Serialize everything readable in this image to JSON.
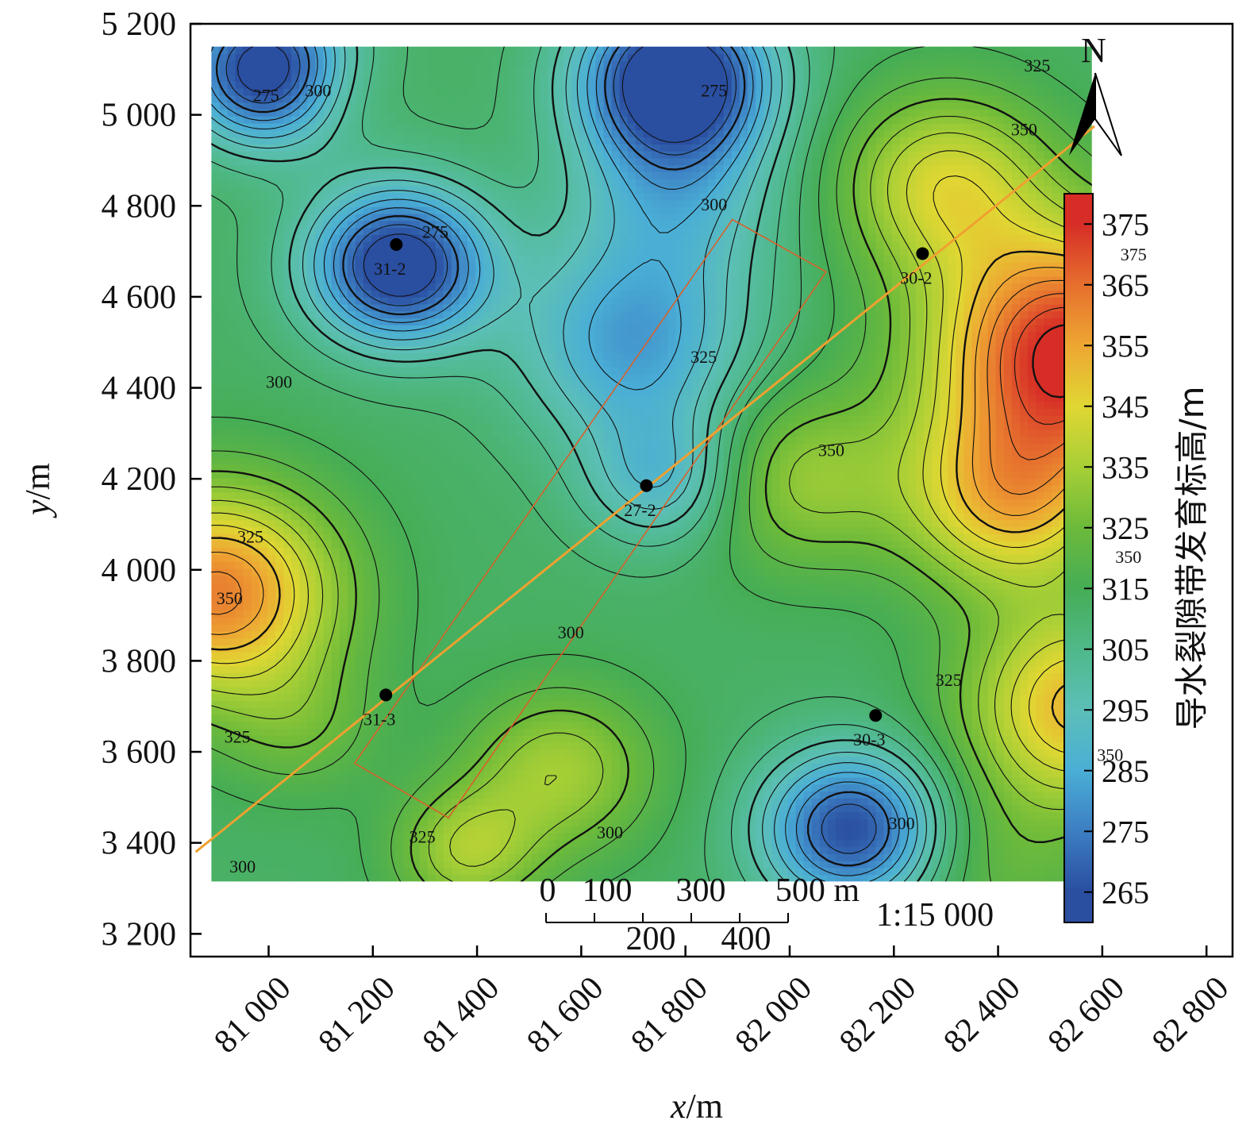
{
  "chart_data": {
    "type": "contour",
    "xlabel_italic": "x",
    "xlabel_unit": "/m",
    "ylabel_italic": "y",
    "ylabel_unit": "/m",
    "xlim": [
      80850,
      82850
    ],
    "ylim": [
      3150,
      5200
    ],
    "x_ticks": [
      81000,
      81200,
      81400,
      81600,
      81800,
      82000,
      82200,
      82400,
      82600,
      82800
    ],
    "x_tick_labels": [
      "81 000",
      "81 200",
      "81 400",
      "81 600",
      "81 800",
      "82 000",
      "82 200",
      "82 400",
      "82 600",
      "82 800"
    ],
    "y_ticks": [
      3200,
      3400,
      3600,
      3800,
      4000,
      4200,
      4400,
      4600,
      4800,
      5000,
      5200
    ],
    "y_tick_labels": [
      "3 200",
      "3 400",
      "3 600",
      "3 800",
      "4 000",
      "4 200",
      "4 400",
      "4 600",
      "4 800",
      "5 000",
      "5 200"
    ],
    "field_extent": {
      "x": [
        80890,
        82580
      ],
      "y": [
        3315,
        5150
      ]
    },
    "colorbar": {
      "title": "导水裂隙带发育标高/m",
      "range": [
        260,
        380
      ],
      "ticks": [
        265,
        275,
        285,
        295,
        305,
        315,
        325,
        335,
        345,
        355,
        365,
        375
      ],
      "tick_labels": [
        "265",
        "275",
        "285",
        "295",
        "305",
        "315",
        "325",
        "335",
        "345",
        "355",
        "365",
        "375"
      ],
      "colors": [
        "#2a4ea0",
        "#3c7ec2",
        "#4aaed6",
        "#5cbfb8",
        "#4fb98a",
        "#46ad55",
        "#6cba3a",
        "#a7cf36",
        "#e0d733",
        "#eea633",
        "#e66f2e",
        "#d62d26"
      ]
    },
    "contour_levels_major": [
      275,
      300,
      325,
      350,
      375
    ],
    "contour_labels": [
      {
        "text": "275",
        "x": 80995,
        "y": 5030
      },
      {
        "text": "300",
        "x": 81095,
        "y": 5040
      },
      {
        "text": "275",
        "x": 81855,
        "y": 5040
      },
      {
        "text": "325",
        "x": 82475,
        "y": 5095
      },
      {
        "text": "350",
        "x": 82450,
        "y": 4955
      },
      {
        "text": "275",
        "x": 81320,
        "y": 4730
      },
      {
        "text": "300",
        "x": 81855,
        "y": 4790
      },
      {
        "text": "375",
        "x": 82660,
        "y": 4680
      },
      {
        "text": "300",
        "x": 81020,
        "y": 4400
      },
      {
        "text": "325",
        "x": 81835,
        "y": 4455
      },
      {
        "text": "350",
        "x": 82080,
        "y": 4250
      },
      {
        "text": "325",
        "x": 80965,
        "y": 4060
      },
      {
        "text": "350",
        "x": 80925,
        "y": 3925
      },
      {
        "text": "350",
        "x": 82650,
        "y": 4015
      },
      {
        "text": "300",
        "x": 81580,
        "y": 3850
      },
      {
        "text": "325",
        "x": 82305,
        "y": 3745
      },
      {
        "text": "350",
        "x": 82615,
        "y": 3580
      },
      {
        "text": "325",
        "x": 80940,
        "y": 3620
      },
      {
        "text": "300",
        "x": 81655,
        "y": 3410
      },
      {
        "text": "300",
        "x": 82215,
        "y": 3430
      },
      {
        "text": "325",
        "x": 81295,
        "y": 3400
      },
      {
        "text": "300",
        "x": 80950,
        "y": 3335
      }
    ],
    "wells": [
      {
        "name": "31-2",
        "x": 81245,
        "y": 4715
      },
      {
        "name": "30-2",
        "x": 82255,
        "y": 4695
      },
      {
        "name": "27-2",
        "x": 81725,
        "y": 4185
      },
      {
        "name": "31-3",
        "x": 81225,
        "y": 3725
      },
      {
        "name": "30-3",
        "x": 82165,
        "y": 3680
      }
    ],
    "working_face_outline": [
      [
        81165,
        3575
      ],
      [
        81345,
        3455
      ],
      [
        82070,
        4655
      ],
      [
        81890,
        4770
      ]
    ],
    "roadway_line": [
      [
        80860,
        3380
      ],
      [
        82585,
        4975
      ]
    ],
    "scale_bar": {
      "top_labels": [
        "0",
        "100",
        "300",
        "500 m"
      ],
      "bottom_labels": [
        "200",
        "400"
      ],
      "ratio": "1:15 000"
    },
    "north_arrow": "N"
  }
}
